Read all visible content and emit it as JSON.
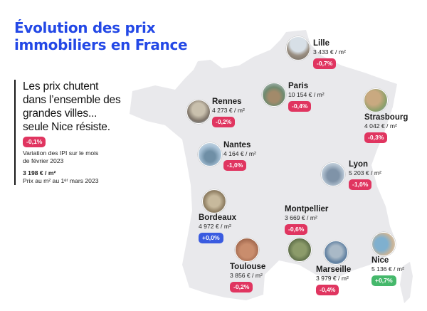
{
  "title_lines": [
    "Évolution des prix",
    "immobiliers en France"
  ],
  "intro": {
    "headline_lines": [
      "Les prix chutent",
      "dans l’ensemble des",
      "grandes villes...",
      "seule Nice résiste."
    ],
    "national_change": "-0,1%",
    "change_note_lines": [
      "Variation des IPI sur le mois",
      "de février 2023"
    ],
    "average_price": "3 198 € / m²",
    "average_note": "Prix au m² au 1ᵉʳ mars 2023"
  },
  "cities": [
    {
      "id": "lille",
      "name": "Lille",
      "price": "3 433 € / m²",
      "change": "-0,7%",
      "trend": "down"
    },
    {
      "id": "paris",
      "name": "Paris",
      "price": "10 154 € / m²",
      "change": "-0,4%",
      "trend": "down"
    },
    {
      "id": "rennes",
      "name": "Rennes",
      "price": "4 273 € / m²",
      "change": "-0,2%",
      "trend": "down"
    },
    {
      "id": "strasbourg",
      "name": "Strasbourg",
      "price": "4 042 € / m²",
      "change": "-0,3%",
      "trend": "down"
    },
    {
      "id": "nantes",
      "name": "Nantes",
      "price": "4 164 € / m²",
      "change": "-1,0%",
      "trend": "down"
    },
    {
      "id": "lyon",
      "name": "Lyon",
      "price": "5 203 € / m²",
      "change": "-1,0%",
      "trend": "down"
    },
    {
      "id": "bordeaux",
      "name": "Bordeaux",
      "price": "4 972 € / m²",
      "change": "+0,0%",
      "trend": "flat"
    },
    {
      "id": "montpellier",
      "name": "Montpellier",
      "price": "3 669 € / m²",
      "change": "-0,6%",
      "trend": "down"
    },
    {
      "id": "toulouse",
      "name": "Toulouse",
      "price": "3 856 € / m²",
      "change": "-0,2%",
      "trend": "down"
    },
    {
      "id": "marseille",
      "name": "Marseille",
      "price": "3 979 € / m²",
      "change": "-0,4%",
      "trend": "down"
    },
    {
      "id": "nice",
      "name": "Nice",
      "price": "5 136 € / m²",
      "change": "+0,7%",
      "trend": "up"
    }
  ],
  "colors": {
    "title": "#2348e6",
    "map_fill": "#e9e9ec",
    "negative": "#e03560",
    "flat": "#3a5be0",
    "positive": "#45b86b"
  }
}
